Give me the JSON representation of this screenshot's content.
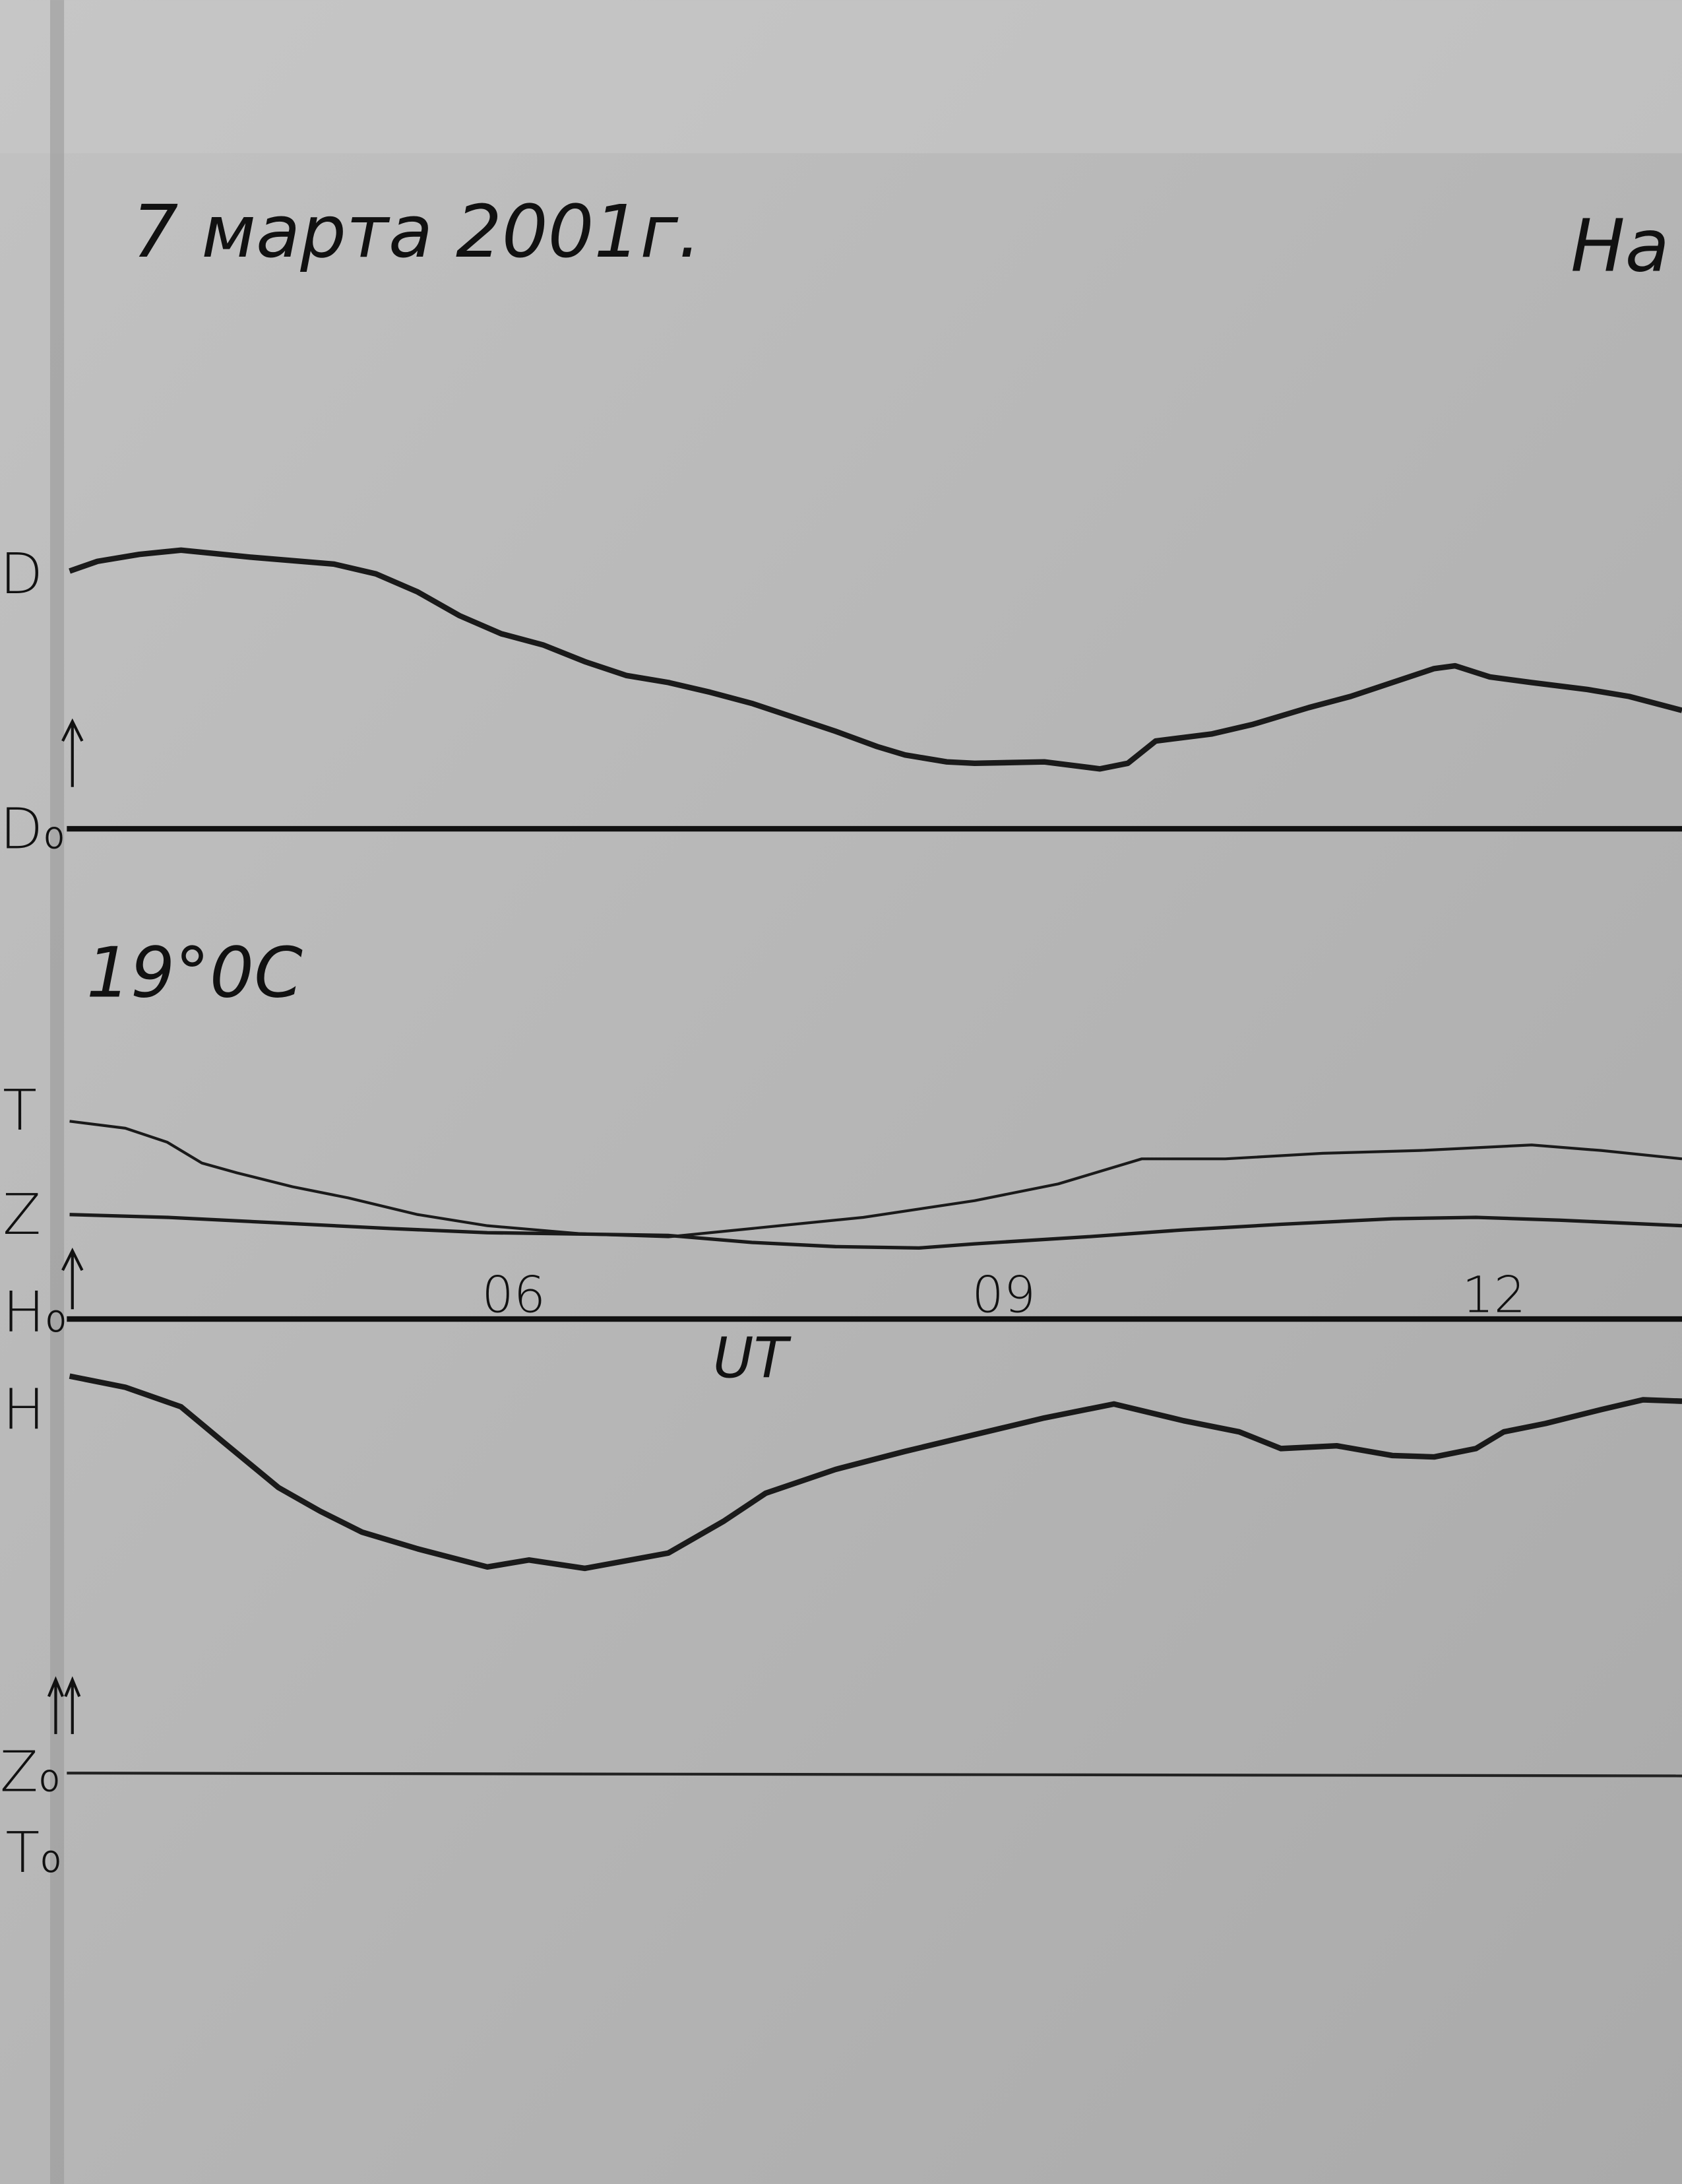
{
  "header": {
    "date": "7 марта 2001г.",
    "station": "На"
  },
  "temperature": "19°0C",
  "trace_labels": {
    "d": "D",
    "d0": "D₀",
    "t": "T",
    "z": "Z",
    "h0": "H₀",
    "h": "H",
    "z0": "Z₀",
    "t0": "T₀"
  },
  "time_axis": {
    "ticks": [
      "06",
      "09",
      "12"
    ],
    "label": "UT"
  }
}
